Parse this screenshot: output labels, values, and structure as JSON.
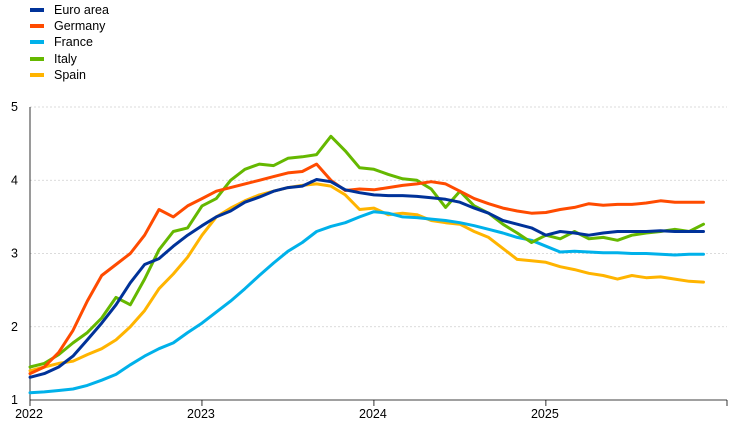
{
  "chart_data": {
    "type": "line",
    "title": "",
    "xlabel": "",
    "ylabel": "",
    "x_tick_labels": [
      "2022",
      "2023",
      "2024",
      "2025"
    ],
    "y_tick_labels": [
      "1",
      "2",
      "3",
      "4",
      "5"
    ],
    "y_ticks": [
      1,
      2,
      3,
      4,
      5
    ],
    "x_ticks": [
      "2022-01",
      "2023-01",
      "2024-01",
      "2025-01"
    ],
    "xlim": [
      "2022-01",
      "2025-12"
    ],
    "ylim": [
      1,
      5
    ],
    "grid": "horizontal",
    "legend_position": "top-left",
    "x": [
      "2022-01",
      "2022-02",
      "2022-03",
      "2022-04",
      "2022-05",
      "2022-06",
      "2022-07",
      "2022-08",
      "2022-09",
      "2022-10",
      "2022-11",
      "2022-12",
      "2023-01",
      "2023-02",
      "2023-03",
      "2023-04",
      "2023-05",
      "2023-06",
      "2023-07",
      "2023-08",
      "2023-09",
      "2023-10",
      "2023-11",
      "2023-12",
      "2024-01",
      "2024-02",
      "2024-03",
      "2024-04",
      "2024-05",
      "2024-06",
      "2024-07",
      "2024-08",
      "2024-09",
      "2024-10",
      "2024-11",
      "2024-12",
      "2025-01",
      "2025-02",
      "2025-03",
      "2025-04",
      "2025-05",
      "2025-06",
      "2025-07",
      "2025-08",
      "2025-09",
      "2025-10",
      "2025-11",
      "2025-12"
    ],
    "series": [
      {
        "name": "Euro area",
        "color": "#003299",
        "values": [
          1.31,
          1.36,
          1.45,
          1.6,
          1.82,
          2.05,
          2.3,
          2.6,
          2.85,
          2.93,
          3.1,
          3.25,
          3.38,
          3.5,
          3.58,
          3.7,
          3.77,
          3.85,
          3.9,
          3.92,
          4.01,
          3.98,
          3.87,
          3.83,
          3.8,
          3.79,
          3.79,
          3.78,
          3.76,
          3.74,
          3.7,
          3.62,
          3.55,
          3.45,
          3.4,
          3.35,
          3.25,
          3.3,
          3.28,
          3.25,
          3.28,
          3.3,
          3.3,
          3.3,
          3.31,
          3.3,
          3.3,
          3.3
        ]
      },
      {
        "name": "Germany",
        "color": "#FF4B00",
        "values": [
          1.36,
          1.45,
          1.65,
          1.95,
          2.35,
          2.7,
          2.85,
          3.0,
          3.25,
          3.6,
          3.5,
          3.65,
          3.75,
          3.85,
          3.9,
          3.95,
          4.0,
          4.05,
          4.1,
          4.12,
          4.22,
          4.0,
          3.86,
          3.88,
          3.87,
          3.9,
          3.93,
          3.95,
          3.98,
          3.95,
          3.85,
          3.75,
          3.68,
          3.62,
          3.58,
          3.55,
          3.56,
          3.6,
          3.63,
          3.68,
          3.66,
          3.67,
          3.67,
          3.69,
          3.72,
          3.7,
          3.7,
          3.7
        ]
      },
      {
        "name": "France",
        "color": "#00B1EA",
        "values": [
          1.1,
          1.11,
          1.13,
          1.15,
          1.2,
          1.27,
          1.35,
          1.48,
          1.6,
          1.7,
          1.78,
          1.92,
          2.05,
          2.2,
          2.35,
          2.52,
          2.7,
          2.87,
          3.03,
          3.15,
          3.3,
          3.37,
          3.42,
          3.5,
          3.57,
          3.55,
          3.5,
          3.49,
          3.47,
          3.45,
          3.42,
          3.38,
          3.33,
          3.28,
          3.22,
          3.18,
          3.1,
          3.02,
          3.03,
          3.02,
          3.01,
          3.01,
          3.0,
          3.0,
          2.99,
          2.98,
          2.99,
          2.99
        ]
      },
      {
        "name": "Italy",
        "color": "#65B800",
        "values": [
          1.45,
          1.5,
          1.62,
          1.78,
          1.92,
          2.12,
          2.4,
          2.3,
          2.65,
          3.05,
          3.3,
          3.35,
          3.65,
          3.75,
          4.0,
          4.15,
          4.22,
          4.2,
          4.3,
          4.32,
          4.35,
          4.6,
          4.4,
          4.17,
          4.15,
          4.08,
          4.02,
          4.0,
          3.88,
          3.63,
          3.85,
          3.65,
          3.55,
          3.4,
          3.28,
          3.15,
          3.25,
          3.2,
          3.3,
          3.2,
          3.22,
          3.18,
          3.25,
          3.28,
          3.3,
          3.33,
          3.3,
          3.4
        ]
      },
      {
        "name": "Spain",
        "color": "#FFB400",
        "values": [
          1.4,
          1.45,
          1.5,
          1.53,
          1.62,
          1.7,
          1.82,
          2.0,
          2.22,
          2.52,
          2.72,
          2.95,
          3.25,
          3.5,
          3.62,
          3.72,
          3.8,
          3.85,
          3.9,
          3.93,
          3.95,
          3.92,
          3.8,
          3.6,
          3.62,
          3.53,
          3.55,
          3.53,
          3.45,
          3.42,
          3.4,
          3.3,
          3.22,
          3.07,
          2.92,
          2.9,
          2.88,
          2.82,
          2.78,
          2.73,
          2.7,
          2.65,
          2.7,
          2.67,
          2.68,
          2.65,
          2.62,
          2.61
        ]
      }
    ]
  }
}
